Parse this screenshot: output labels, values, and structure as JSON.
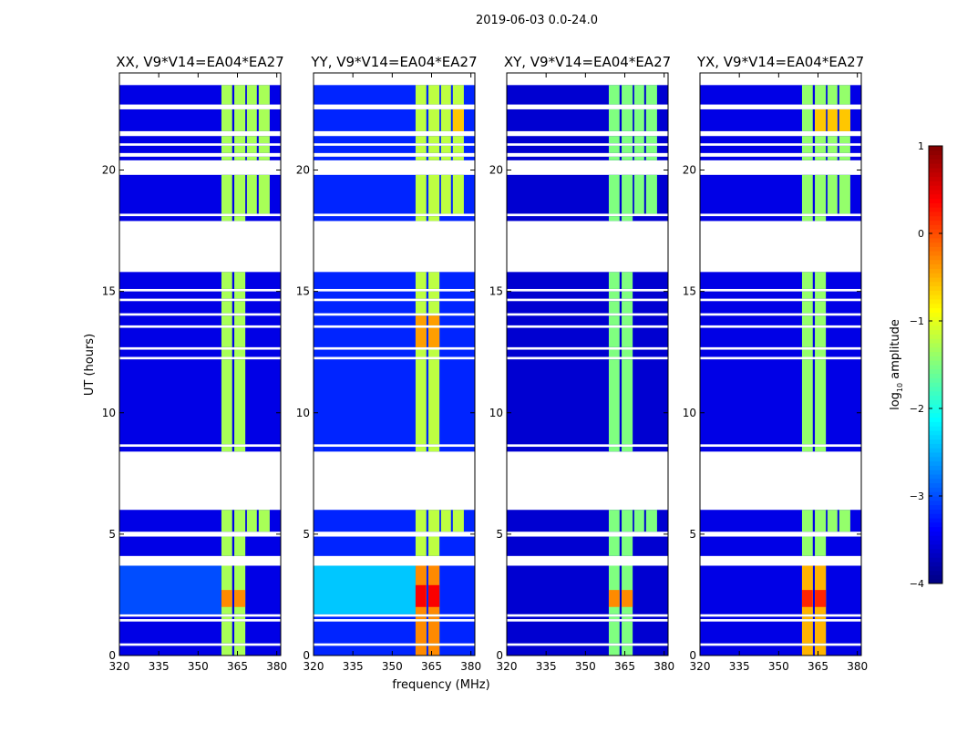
{
  "chart_data": {
    "type": "heatmap",
    "title": "2019-06-03 0.0-24.0",
    "xlabel": "frequency (MHz)",
    "ylabel": "UT (hours)",
    "xlim": [
      320,
      381.5
    ],
    "ylim": [
      0,
      24
    ],
    "xticks": [
      320,
      335,
      350,
      365,
      380
    ],
    "yticks": [
      0,
      5,
      10,
      15,
      20
    ],
    "colorbar": {
      "label_main": "log",
      "label_sub": "10",
      "label_rest": " amplitude",
      "range": [
        -4,
        1
      ],
      "ticks": [
        1,
        0,
        -1,
        -2,
        -3,
        -4
      ],
      "tick_labels": [
        "1",
        "0",
        "−1",
        "−2",
        "−3",
        "−4"
      ],
      "colormap": "jet"
    },
    "bands_mhz": [
      [
        358.9,
        363.0
      ],
      [
        363.8,
        368.0
      ],
      [
        368.6,
        372.4
      ],
      [
        373.1,
        377.3
      ]
    ],
    "time_segments": [
      {
        "t": [
          0.0,
          0.4
        ],
        "bands": [
          0,
          1
        ]
      },
      {
        "t": [
          0.5,
          1.4
        ],
        "bands": [
          0,
          1
        ]
      },
      {
        "t": [
          1.5,
          1.6
        ],
        "bands": [
          0,
          1
        ]
      },
      {
        "t": [
          1.7,
          3.7
        ],
        "bands": [
          0,
          1
        ]
      },
      {
        "t": [
          4.1,
          4.9
        ],
        "bands": [
          0,
          1
        ]
      },
      {
        "t": [
          5.1,
          6.0
        ],
        "bands": [
          0,
          1,
          2,
          3
        ]
      },
      {
        "t": [
          8.4,
          8.6
        ],
        "bands": [
          0,
          1
        ]
      },
      {
        "t": [
          8.7,
          12.2
        ],
        "bands": [
          0,
          1
        ]
      },
      {
        "t": [
          12.3,
          12.6
        ],
        "bands": [
          0,
          1
        ]
      },
      {
        "t": [
          12.7,
          13.5
        ],
        "bands": [
          0,
          1
        ]
      },
      {
        "t": [
          13.6,
          14.0
        ],
        "bands": [
          0,
          1
        ]
      },
      {
        "t": [
          14.1,
          14.6
        ],
        "bands": [
          0,
          1
        ]
      },
      {
        "t": [
          14.7,
          15.0
        ],
        "bands": [
          0,
          1
        ]
      },
      {
        "t": [
          15.1,
          15.8
        ],
        "bands": [
          0,
          1
        ]
      },
      {
        "t": [
          17.9,
          18.1
        ],
        "bands": [
          0,
          1
        ]
      },
      {
        "t": [
          18.2,
          19.8
        ],
        "bands": [
          0,
          1,
          2,
          3
        ]
      },
      {
        "t": [
          20.4,
          20.55
        ],
        "bands": [
          0,
          1,
          2,
          3
        ]
      },
      {
        "t": [
          20.7,
          21.0
        ],
        "bands": [
          0,
          1,
          2,
          3
        ]
      },
      {
        "t": [
          21.1,
          21.4
        ],
        "bands": [
          0,
          1,
          2,
          3
        ]
      },
      {
        "t": [
          21.6,
          22.5
        ],
        "bands": [
          0,
          1,
          2,
          3
        ]
      },
      {
        "t": [
          22.7,
          23.5
        ],
        "bands": [
          0,
          1,
          2,
          3
        ]
      }
    ],
    "panels": [
      {
        "title": "XX, V9*V14=EA04*EA27",
        "background": -3.5,
        "band_level": -1.3,
        "patches": [
          {
            "t": [
              1.7,
              3.7
            ],
            "f": [
              320,
              358.9
            ],
            "v": -3.0
          },
          {
            "t": [
              2.0,
              2.7
            ],
            "f": [
              358.9,
              368.0
            ],
            "v": -0.3
          }
        ]
      },
      {
        "title": "YY, V9*V14=EA04*EA27",
        "background": -3.2,
        "band_level": -1.2,
        "patches": [
          {
            "t": [
              1.7,
              3.7
            ],
            "f": [
              320,
              358.9
            ],
            "v": -2.4
          },
          {
            "t": [
              0.0,
              3.7
            ],
            "f": [
              358.9,
              368.0
            ],
            "v": -0.3
          },
          {
            "t": [
              2.0,
              2.9
            ],
            "f": [
              358.9,
              368.0
            ],
            "v": 0.4
          },
          {
            "t": [
              12.7,
              14.0
            ],
            "f": [
              358.9,
              368.0
            ],
            "v": -0.4
          },
          {
            "t": [
              21.6,
              22.5
            ],
            "f": [
              373.1,
              377.3
            ],
            "v": -0.6
          }
        ]
      },
      {
        "title": "XY, V9*V14=EA04*EA27",
        "background": -3.6,
        "band_level": -1.5,
        "patches": [
          {
            "t": [
              2.0,
              2.7
            ],
            "f": [
              358.9,
              368.0
            ],
            "v": -0.3
          }
        ]
      },
      {
        "title": "YX, V9*V14=EA04*EA27",
        "background": -3.5,
        "band_level": -1.4,
        "patches": [
          {
            "t": [
              0.0,
              3.7
            ],
            "f": [
              358.9,
              368.0
            ],
            "v": -0.5
          },
          {
            "t": [
              2.0,
              2.7
            ],
            "f": [
              358.9,
              368.0
            ],
            "v": 0.2
          },
          {
            "t": [
              21.6,
              22.5
            ],
            "f": [
              363.8,
              377.3
            ],
            "v": -0.6
          }
        ]
      }
    ]
  }
}
